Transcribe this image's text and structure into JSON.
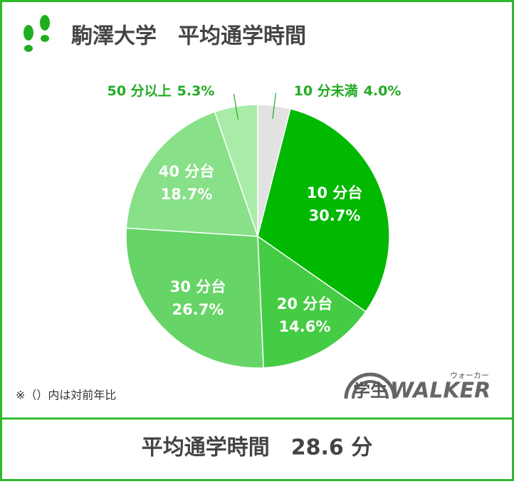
{
  "chart_data": {
    "type": "pie",
    "title": "駒澤大学　平均通学時間",
    "categories": [
      "10 分未満",
      "10 分台",
      "20 分台",
      "30 分台",
      "40 分台",
      "50 分以上"
    ],
    "values": [
      4.0,
      30.7,
      14.6,
      26.7,
      18.7,
      5.3
    ],
    "value_labels": [
      "4.0%",
      "30.7%",
      "14.6%",
      "26.7%",
      "18.7%",
      "5.3%"
    ],
    "colors": [
      "#e2e2e2",
      "#00b900",
      "#45cc45",
      "#66d466",
      "#88e088",
      "#a8eca8"
    ],
    "note": "※（）内は対前年比",
    "logo": {
      "main": "学生",
      "brand": "WALKER",
      "reading": "ウォーカー"
    },
    "footer": "平均通学時間　28.6 分"
  }
}
